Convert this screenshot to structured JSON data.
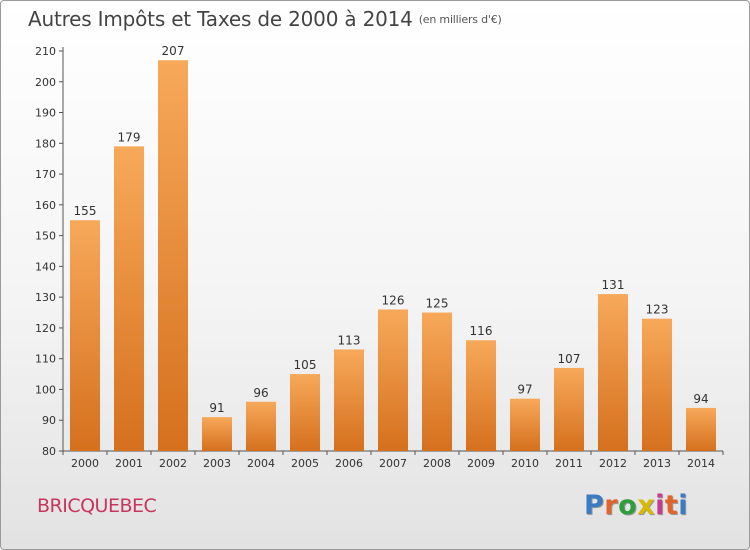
{
  "header": {
    "title": "Autres Impôts et Taxes de 2000 à 2014",
    "unit": "(en milliers d'€)"
  },
  "footer": {
    "city": "BRICQUEBEC",
    "logo_letters": [
      "P",
      "r",
      "o",
      "x",
      "i",
      "t",
      "i"
    ],
    "logo_colors": [
      "#3a7cc4",
      "#e2632b",
      "#2e9e3d",
      "#d9b800",
      "#c73b8f",
      "#e2632b",
      "#3a7cc4"
    ]
  },
  "colors": {
    "bar_light": "#f7a95a",
    "bar_dark": "#d5701d",
    "axis": "#555555",
    "gridline": "#dddddd"
  },
  "chart_data": {
    "type": "bar",
    "title": "Autres Impôts et Taxes de 2000 à 2014",
    "subtitle": "(en milliers d'€)",
    "xlabel": "",
    "ylabel": "",
    "categories": [
      "2000",
      "2001",
      "2002",
      "2003",
      "2004",
      "2005",
      "2006",
      "2007",
      "2008",
      "2009",
      "2010",
      "2011",
      "2012",
      "2013",
      "2014"
    ],
    "values": [
      155,
      179,
      207,
      91,
      96,
      105,
      113,
      126,
      125,
      116,
      97,
      107,
      131,
      123,
      94
    ],
    "ylim": [
      80,
      210
    ],
    "yticks": [
      80,
      90,
      100,
      110,
      120,
      130,
      140,
      150,
      160,
      170,
      180,
      190,
      200,
      210
    ],
    "data_labels": true,
    "grid": false,
    "legend": "none"
  }
}
